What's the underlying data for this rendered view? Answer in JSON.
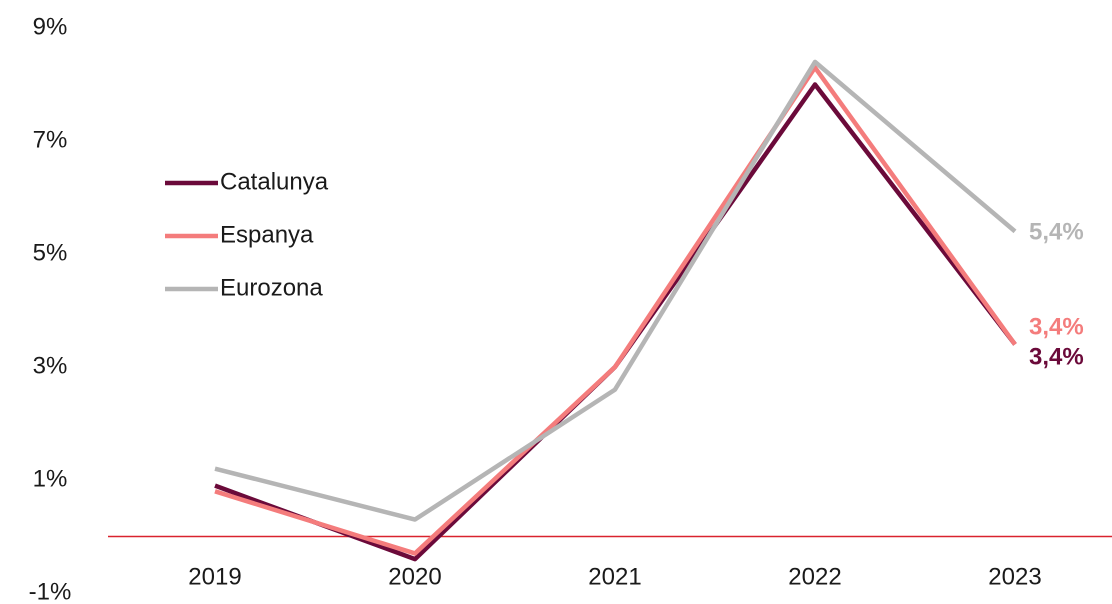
{
  "chart_data": {
    "type": "line",
    "categories": [
      "2019",
      "2020",
      "2021",
      "2022",
      "2023"
    ],
    "series": [
      {
        "name": "Catalunya",
        "color": "#6b0a3a",
        "values": [
          0.9,
          -0.4,
          3.0,
          8.0,
          3.4
        ],
        "value_labels": [
          null,
          null,
          null,
          null,
          "3,4%"
        ]
      },
      {
        "name": "Espanya",
        "color": "#f47c7c",
        "values": [
          0.8,
          -0.3,
          3.0,
          8.3,
          3.4
        ],
        "value_labels": [
          null,
          null,
          null,
          null,
          "3,4%"
        ]
      },
      {
        "name": "Eurozona",
        "color": "#b5b5b5",
        "values": [
          1.2,
          0.3,
          2.6,
          8.4,
          5.4
        ],
        "value_labels": [
          null,
          null,
          null,
          null,
          "5,4%"
        ]
      }
    ],
    "ylim": [
      -1,
      9
    ],
    "yticks": [
      {
        "value": -1,
        "label": "-1%"
      },
      {
        "value": 1,
        "label": "1%"
      },
      {
        "value": 3,
        "label": "3%"
      },
      {
        "value": 5,
        "label": "5%"
      },
      {
        "value": 7,
        "label": "7%"
      },
      {
        "value": 9,
        "label": "9%"
      }
    ],
    "reference_line": {
      "value": 0,
      "color": "#d9232e"
    },
    "legend": "upper left"
  }
}
